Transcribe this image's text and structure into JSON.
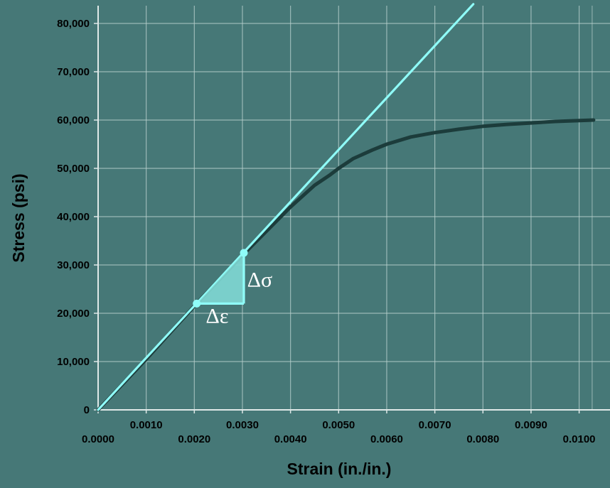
{
  "colors": {
    "background": "#467877",
    "grid": "#b7cfcc",
    "axis": "#dfe9e8",
    "curve": "#1c3c3b",
    "tangent": "#8ffcf8",
    "triangle_fill": "#7fd8d4",
    "annotation_text": "#ffffff"
  },
  "chart_data": {
    "type": "line",
    "title": "",
    "xlabel": "Strain (in./in.)",
    "ylabel": "Stress (psi)",
    "xlim": [
      0.0,
      0.0103
    ],
    "ylim": [
      0,
      80000
    ],
    "grid": true,
    "x_ticks": [
      0.0,
      0.001,
      0.002,
      0.003,
      0.004,
      0.005,
      0.006,
      0.007,
      0.008,
      0.009,
      0.01
    ],
    "x_tick_labels": [
      "0.0000",
      "0.0010",
      "0.0020",
      "0.0030",
      "0.0040",
      "0.0050",
      "0.0060",
      "0.0070",
      "0.0080",
      "0.0090",
      "0.0100"
    ],
    "y_ticks": [
      0,
      10000,
      20000,
      30000,
      40000,
      50000,
      60000,
      70000,
      80000
    ],
    "y_tick_labels": [
      "0",
      "10,000",
      "20,000",
      "30,000",
      "40,000",
      "50,000",
      "60,000",
      "70,000",
      "80,000"
    ],
    "series": [
      {
        "role": "stress-strain-curve",
        "x": [
          0.0,
          0.001,
          0.002,
          0.003,
          0.004,
          0.0045,
          0.0048,
          0.005,
          0.0053,
          0.0057,
          0.006,
          0.0065,
          0.007,
          0.0075,
          0.008,
          0.0085,
          0.009,
          0.0095,
          0.01,
          0.0103
        ],
        "y": [
          0,
          10500,
          21500,
          32000,
          42000,
          46500,
          48500,
          50000,
          52000,
          53800,
          55000,
          56500,
          57400,
          58100,
          58700,
          59100,
          59400,
          59700,
          59900,
          60000
        ]
      },
      {
        "role": "tangent-line",
        "x": [
          0.0,
          0.0078
        ],
        "y": [
          0,
          84000
        ]
      }
    ],
    "annotation_triangle": {
      "p1": [
        0.00205,
        22000
      ],
      "p2": [
        0.00303,
        32500
      ],
      "corner": [
        0.00303,
        22000
      ]
    },
    "annotations": [
      {
        "text": "Δσ",
        "x": 0.0031,
        "y": 27000
      },
      {
        "text": "Δε",
        "x": 0.00224,
        "y": 19500
      }
    ]
  }
}
